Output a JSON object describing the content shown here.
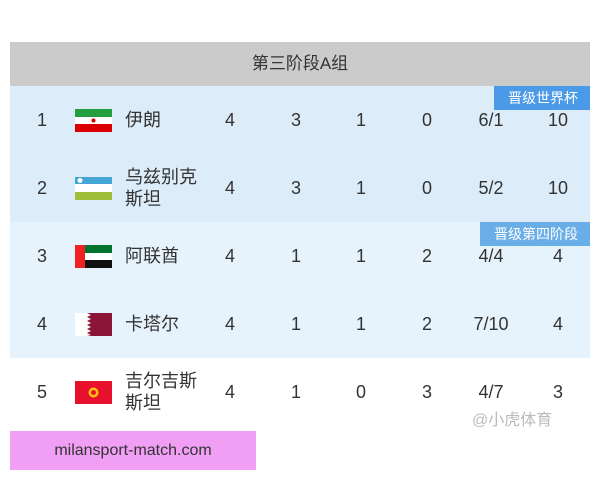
{
  "title": "第三阶段A组",
  "badges": {
    "world_cup": "晋级世界杯",
    "fourth_stage": "晋级第四阶段"
  },
  "colors": {
    "header_bg": "#cbcbcb",
    "qualified_bg": "#dcecf9",
    "playoff_bg": "#e6f3fc",
    "badge_world_cup": "#4a9ae8",
    "badge_fourth": "#6aaee8"
  },
  "rows": [
    {
      "rank": "1",
      "flag": "iran-flag",
      "name": "伊朗",
      "played": "4",
      "won": "3",
      "drawn": "1",
      "lost": "0",
      "goals": "6/1",
      "points": "10"
    },
    {
      "rank": "2",
      "flag": "uzbekistan-flag",
      "name": "乌兹别克斯坦",
      "played": "4",
      "won": "3",
      "drawn": "1",
      "lost": "0",
      "goals": "5/2",
      "points": "10"
    },
    {
      "rank": "3",
      "flag": "uae-flag",
      "name": "阿联酋",
      "played": "4",
      "won": "1",
      "drawn": "1",
      "lost": "2",
      "goals": "4/4",
      "points": "4"
    },
    {
      "rank": "4",
      "flag": "qatar-flag",
      "name": "卡塔尔",
      "played": "4",
      "won": "1",
      "drawn": "1",
      "lost": "2",
      "goals": "7/10",
      "points": "4"
    },
    {
      "rank": "5",
      "flag": "kyrgyzstan-flag",
      "name": "吉尔吉斯斯坦",
      "played": "4",
      "won": "1",
      "drawn": "0",
      "lost": "3",
      "goals": "4/7",
      "points": "3"
    }
  ],
  "watermark": "@小虎体育",
  "ad_text": "milansport-match.com"
}
